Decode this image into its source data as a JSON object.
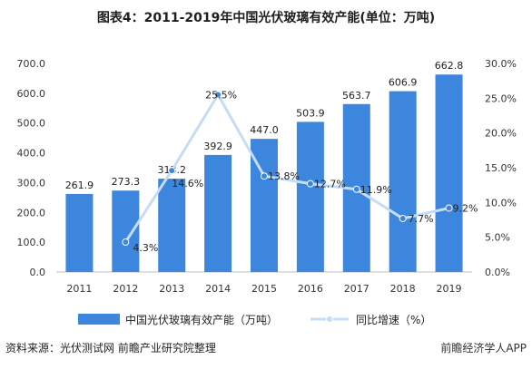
{
  "title": "图表4：2011-2019年中国光伏玻璃有效产能(单位：万吨)",
  "source": "资料来源：光伏测试网 前瞻产业研究院整理",
  "brand": "前瞻经济学人APP",
  "colors": {
    "bar": "#3d86dd",
    "line": "#c6dcf5",
    "marker": "#3d86dd"
  },
  "chart_data": {
    "type": "bar",
    "categories": [
      "2011",
      "2012",
      "2013",
      "2014",
      "2015",
      "2016",
      "2017",
      "2018",
      "2019"
    ],
    "series": [
      {
        "name": "中国光伏玻璃有效产能（万吨）",
        "type": "bar",
        "axis": "left",
        "values": [
          261.9,
          273.3,
          313.2,
          392.9,
          447.0,
          503.9,
          563.7,
          606.9,
          662.8
        ],
        "labels": [
          "261.9",
          "273.3",
          "313.2",
          "392.9",
          "447.0",
          "503.9",
          "563.7",
          "606.9",
          "662.8"
        ]
      },
      {
        "name": "同比增速（%）",
        "type": "line",
        "axis": "right",
        "values": [
          null,
          4.3,
          14.6,
          25.5,
          13.8,
          12.7,
          11.9,
          7.7,
          9.2
        ],
        "labels": [
          "",
          "4.3%",
          "14.6%",
          "25.5%",
          "13.8%",
          "12.7%",
          "11.9%",
          "7.7%",
          "9.2%"
        ]
      }
    ],
    "left_axis": {
      "ylim": [
        0,
        700
      ],
      "ticks": [
        "0.0",
        "100.0",
        "200.0",
        "300.0",
        "400.0",
        "500.0",
        "600.0",
        "700.0"
      ]
    },
    "right_axis": {
      "ylim": [
        0,
        30
      ],
      "ticks": [
        "0.0%",
        "5.0%",
        "10.0%",
        "15.0%",
        "20.0%",
        "25.0%",
        "30.0%"
      ]
    },
    "grid": false,
    "legend_position": "bottom"
  }
}
